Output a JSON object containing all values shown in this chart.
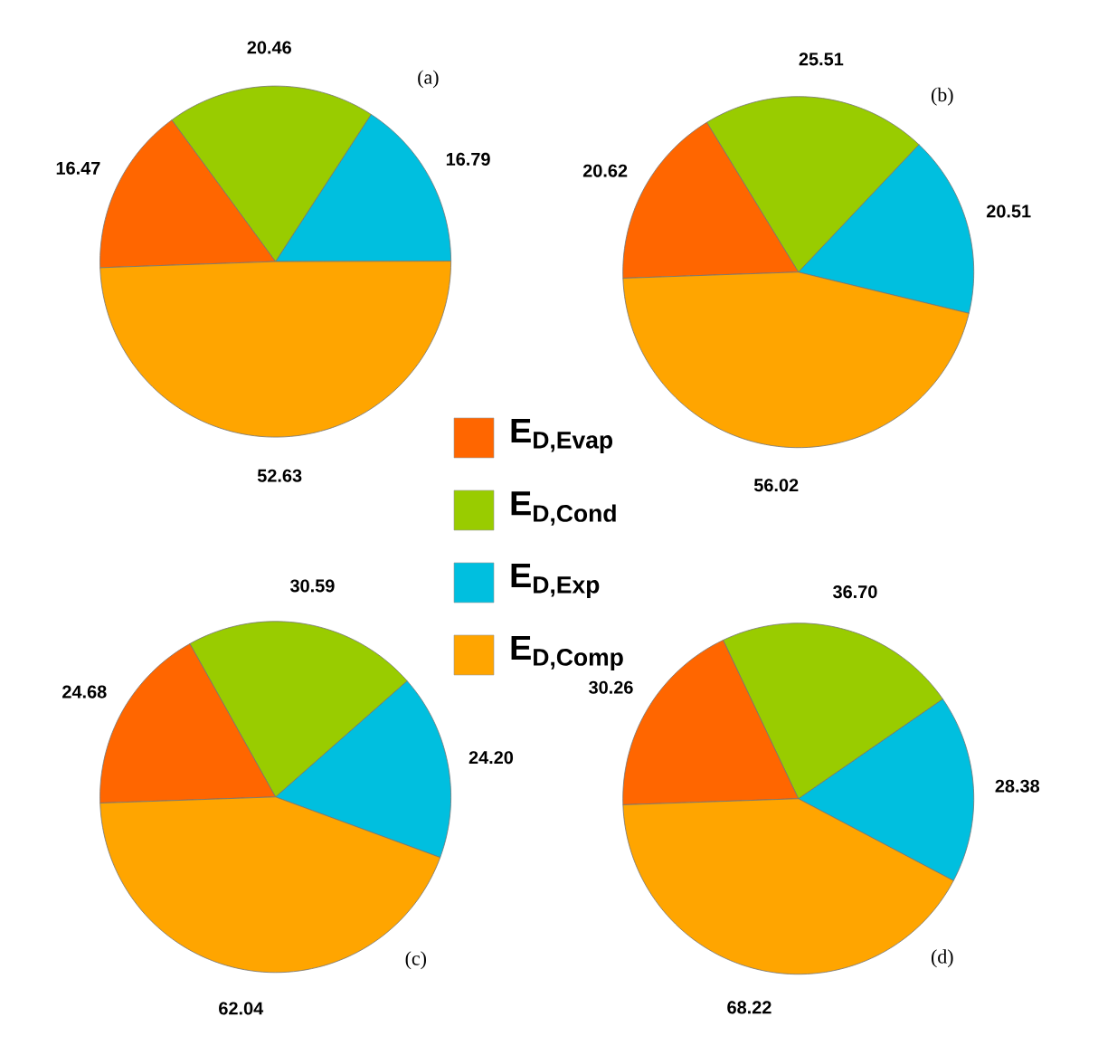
{
  "chart_data": [
    {
      "type": "pie",
      "title": "(a)",
      "categories": [
        "E$_{D,Evap}$",
        "E$_{D,Cond}$",
        "E$_{D,Exp}$",
        "E$_{D,Comp}$"
      ],
      "values": [
        16.47,
        20.46,
        16.79,
        52.63
      ],
      "value_labels": [
        "16.47",
        "20.46",
        "16.79",
        "52.63"
      ],
      "colors": [
        "#ff6600",
        "#99cc00",
        "#00bfdf",
        "#ffa500"
      ],
      "legend": "bottom right"
    },
    {
      "type": "pie",
      "title": "(b)",
      "values": [
        20.62,
        25.51,
        20.51,
        56.02
      ],
      "value_labels": [
        "20.62",
        "25.51",
        "20.51",
        "56.02"
      ],
      "colors": [
        "#ff6600",
        "#99cc00",
        "#00bfdf",
        "#ffa500"
      ]
    },
    {
      "type": "pie",
      "title": "(c)",
      "values": [
        24.68,
        30.59,
        24.2,
        62.04
      ],
      "value_labels": [
        "24.68",
        "30.59",
        "24.20",
        "62.04"
      ],
      "colors": [
        "#ff6600",
        "#99cc00",
        "#00bfdf",
        "#ffa500"
      ]
    },
    {
      "type": "pie",
      "title": "(d)",
      "values": [
        30.26,
        36.7,
        28.38,
        68.22
      ],
      "value_labels": [
        "30.26",
        "36.70",
        "28.38",
        "68.22"
      ],
      "colors": [
        "#ff6600",
        "#99cc00",
        "#00bfdf",
        "#ffa500"
      ]
    }
  ]
}
